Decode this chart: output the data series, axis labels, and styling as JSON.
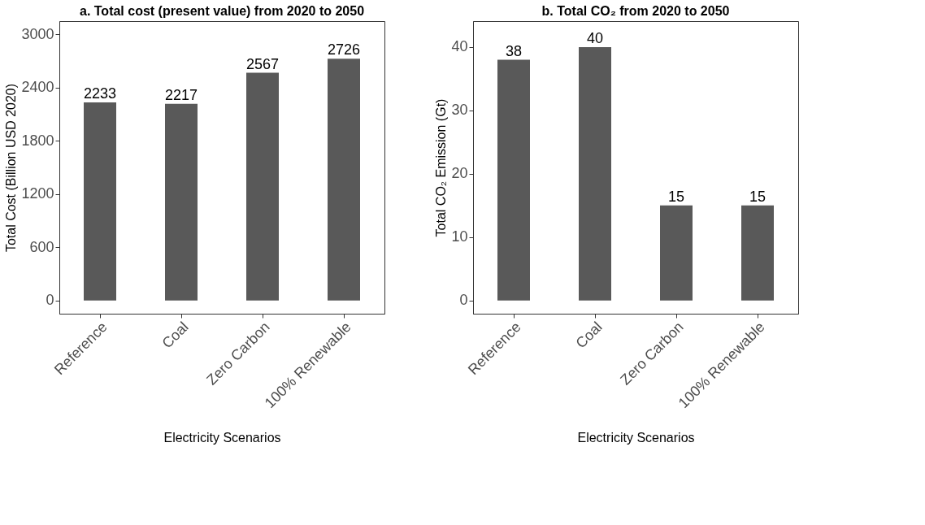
{
  "chart_data": [
    {
      "type": "bar",
      "title": "a. Total cost (present value) from 2020 to 2050",
      "xlabel": "Electricity Scenarios",
      "ylabel": "Total Cost (Billion USD 2020)",
      "categories": [
        "Reference",
        "Coal",
        "Zero Carbon",
        "100% Renewable"
      ],
      "values": [
        2233,
        2217,
        2567,
        2726
      ],
      "color": "#595959",
      "ylim": [
        -150,
        3150
      ],
      "yticks": [
        0,
        600,
        1200,
        1800,
        2400,
        3000
      ],
      "grid": false,
      "data_labels": true
    },
    {
      "type": "bar",
      "title": "b. Total CO₂ from 2020 to 2050",
      "xlabel": "Electricity Scenarios",
      "ylabel": "Total CO₂ Emission (Gt)",
      "categories": [
        "Reference",
        "Coal",
        "Zero Carbon",
        "100% Renewable"
      ],
      "values": [
        38,
        40,
        15,
        15
      ],
      "color": "#595959",
      "ylim": [
        -2.1,
        44.1
      ],
      "yticks": [
        0,
        10,
        20,
        30,
        40
      ],
      "grid": false,
      "data_labels": true
    }
  ]
}
